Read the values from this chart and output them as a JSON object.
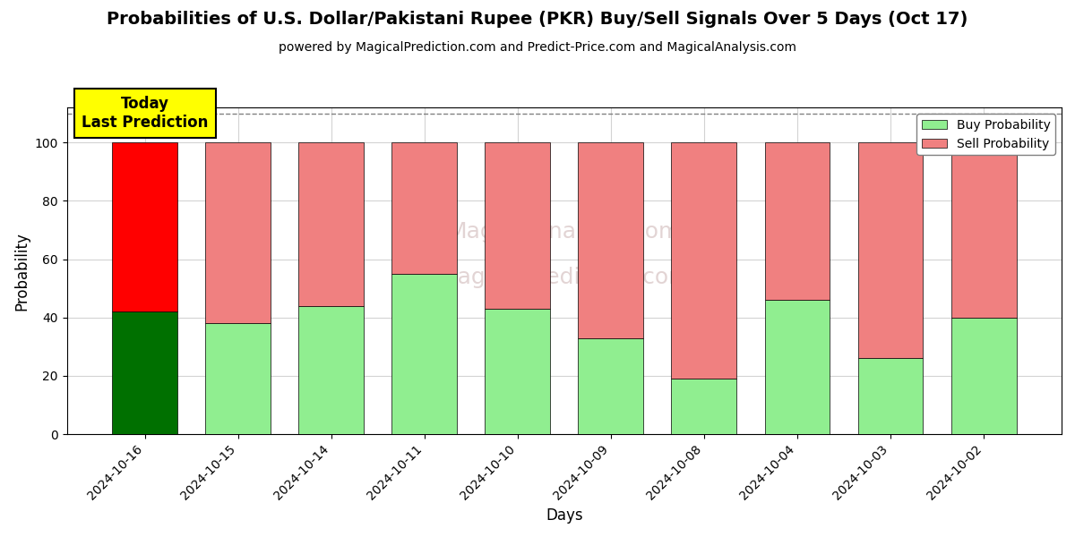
{
  "title": "Probabilities of U.S. Dollar/Pakistani Rupee (PKR) Buy/Sell Signals Over 5 Days (Oct 17)",
  "subtitle": "powered by MagicalPrediction.com and Predict-Price.com and MagicalAnalysis.com",
  "xlabel": "Days",
  "ylabel": "Probability",
  "dates": [
    "2024-10-16",
    "2024-10-15",
    "2024-10-14",
    "2024-10-11",
    "2024-10-10",
    "2024-10-09",
    "2024-10-08",
    "2024-10-04",
    "2024-10-03",
    "2024-10-02"
  ],
  "buy_values": [
    42,
    38,
    44,
    55,
    43,
    33,
    19,
    46,
    26,
    40
  ],
  "sell_values": [
    58,
    62,
    56,
    45,
    57,
    67,
    81,
    54,
    74,
    60
  ],
  "today_buy_color": "#007000",
  "today_sell_color": "#FF0000",
  "other_buy_color": "#90EE90",
  "other_sell_color": "#F08080",
  "today_label_bg": "#FFFF00",
  "legend_buy_color": "#90EE90",
  "legend_sell_color": "#F08080",
  "ylim": [
    0,
    112
  ],
  "yticks": [
    0,
    20,
    40,
    60,
    80,
    100
  ],
  "dashed_line_y": 110,
  "annotation_text": "Today\nLast Prediction",
  "bar_width": 0.7
}
